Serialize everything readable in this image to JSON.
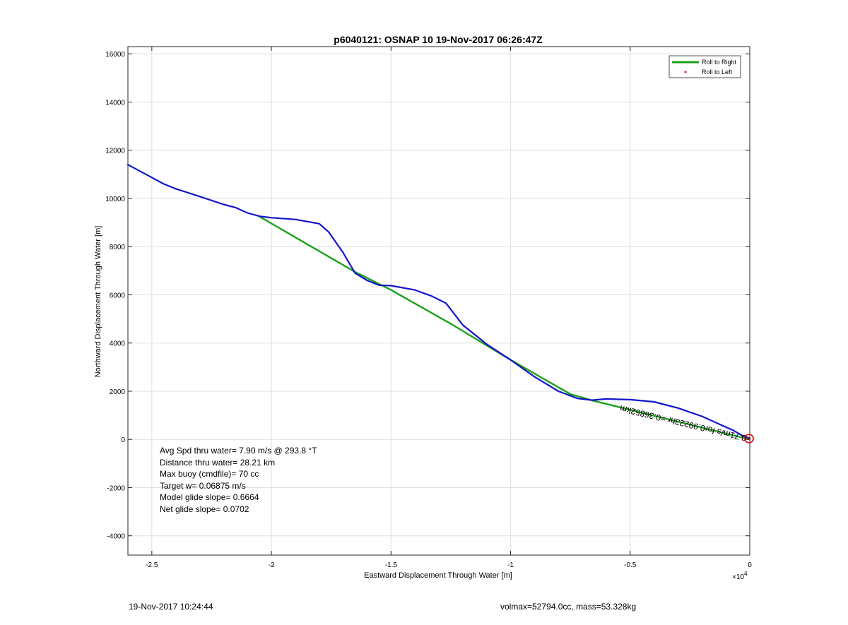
{
  "chart_data": {
    "type": "line",
    "title": "p6040121: OSNAP 10 19-Nov-2017 06:26:47Z",
    "xlabel": "Eastward Displacement Through Water [m]",
    "ylabel": "Northward Displacement Through Water [m]",
    "xlim": [
      -2.6,
      0
    ],
    "ylim": [
      -4800,
      16300
    ],
    "x_scale_label": "×10",
    "x_scale_exponent": "4",
    "xticks": [
      -2.5,
      -2,
      -1.5,
      -1,
      -0.5,
      0
    ],
    "xtick_labels": [
      "-2.5",
      "-2",
      "-1.5",
      "-1",
      "-0.5",
      "0"
    ],
    "yticks": [
      -4000,
      -2000,
      0,
      2000,
      4000,
      6000,
      8000,
      10000,
      12000,
      14000,
      16000
    ],
    "ytick_labels": [
      "-4000",
      "-2000",
      "0",
      "2000",
      "4000",
      "6000",
      "8000",
      "10000",
      "12000",
      "14000",
      "16000"
    ],
    "grid": true,
    "legend_position": "top-right",
    "legend": [
      {
        "label": "Roll to Right",
        "color": "#1aa21a",
        "style": "line"
      },
      {
        "label": "Roll to Left",
        "color": "#e00000",
        "style": "marker"
      }
    ],
    "series": [
      {
        "name": "Roll to Right",
        "color": "#1aa21a",
        "x": [
          0,
          -0.66,
          -0.75,
          -1.0,
          -1.25,
          -1.5,
          -1.65,
          -2.05
        ],
        "y": [
          0,
          1620,
          1880,
          3300,
          4800,
          6200,
          6950,
          9250
        ]
      },
      {
        "color": "#1414cc",
        "x": [
          0,
          -0.03,
          -0.07,
          -0.12,
          -0.2,
          -0.3,
          -0.4,
          -0.5,
          -0.6,
          -0.66,
          -0.72,
          -0.8,
          -0.9,
          -1.0,
          -1.1,
          -1.2,
          -1.27,
          -1.33,
          -1.4,
          -1.5,
          -1.55,
          -1.6,
          -1.65,
          -1.7,
          -1.76,
          -1.8,
          -1.9,
          -2.0,
          -2.05,
          -2.1,
          -2.15,
          -2.2,
          -2.3,
          -2.4,
          -2.45,
          -2.5,
          -2.6
        ],
        "y": [
          50,
          150,
          380,
          600,
          960,
          1300,
          1560,
          1650,
          1680,
          1630,
          1700,
          2000,
          2600,
          3300,
          3950,
          4750,
          5650,
          5950,
          6200,
          6380,
          6400,
          6600,
          6900,
          7750,
          8600,
          8950,
          9130,
          9200,
          9260,
          9400,
          9620,
          9750,
          10080,
          10400,
          10600,
          10870,
          11400
        ]
      }
    ],
    "annotations": {
      "rotated_label": "0.71m/s for0.99223hr =0.36852km",
      "avg_speed": "Avg Spd thru water=  7.90 m/s @ 293.8 °T",
      "distance": "Distance thru water= 28.21 km",
      "max_buoy": "Max buoy (cmdfile)= 70 cc",
      "target_w": "Target w= 0.06875 m/s",
      "model_glide": "Model glide slope= 0.6664",
      "net_glide": "Net glide slope= 0.0702"
    }
  },
  "footer": {
    "timestamp": "19-Nov-2017 10:24:44",
    "volmax": "volmax=52794.0cc, mass=53.328kg"
  }
}
